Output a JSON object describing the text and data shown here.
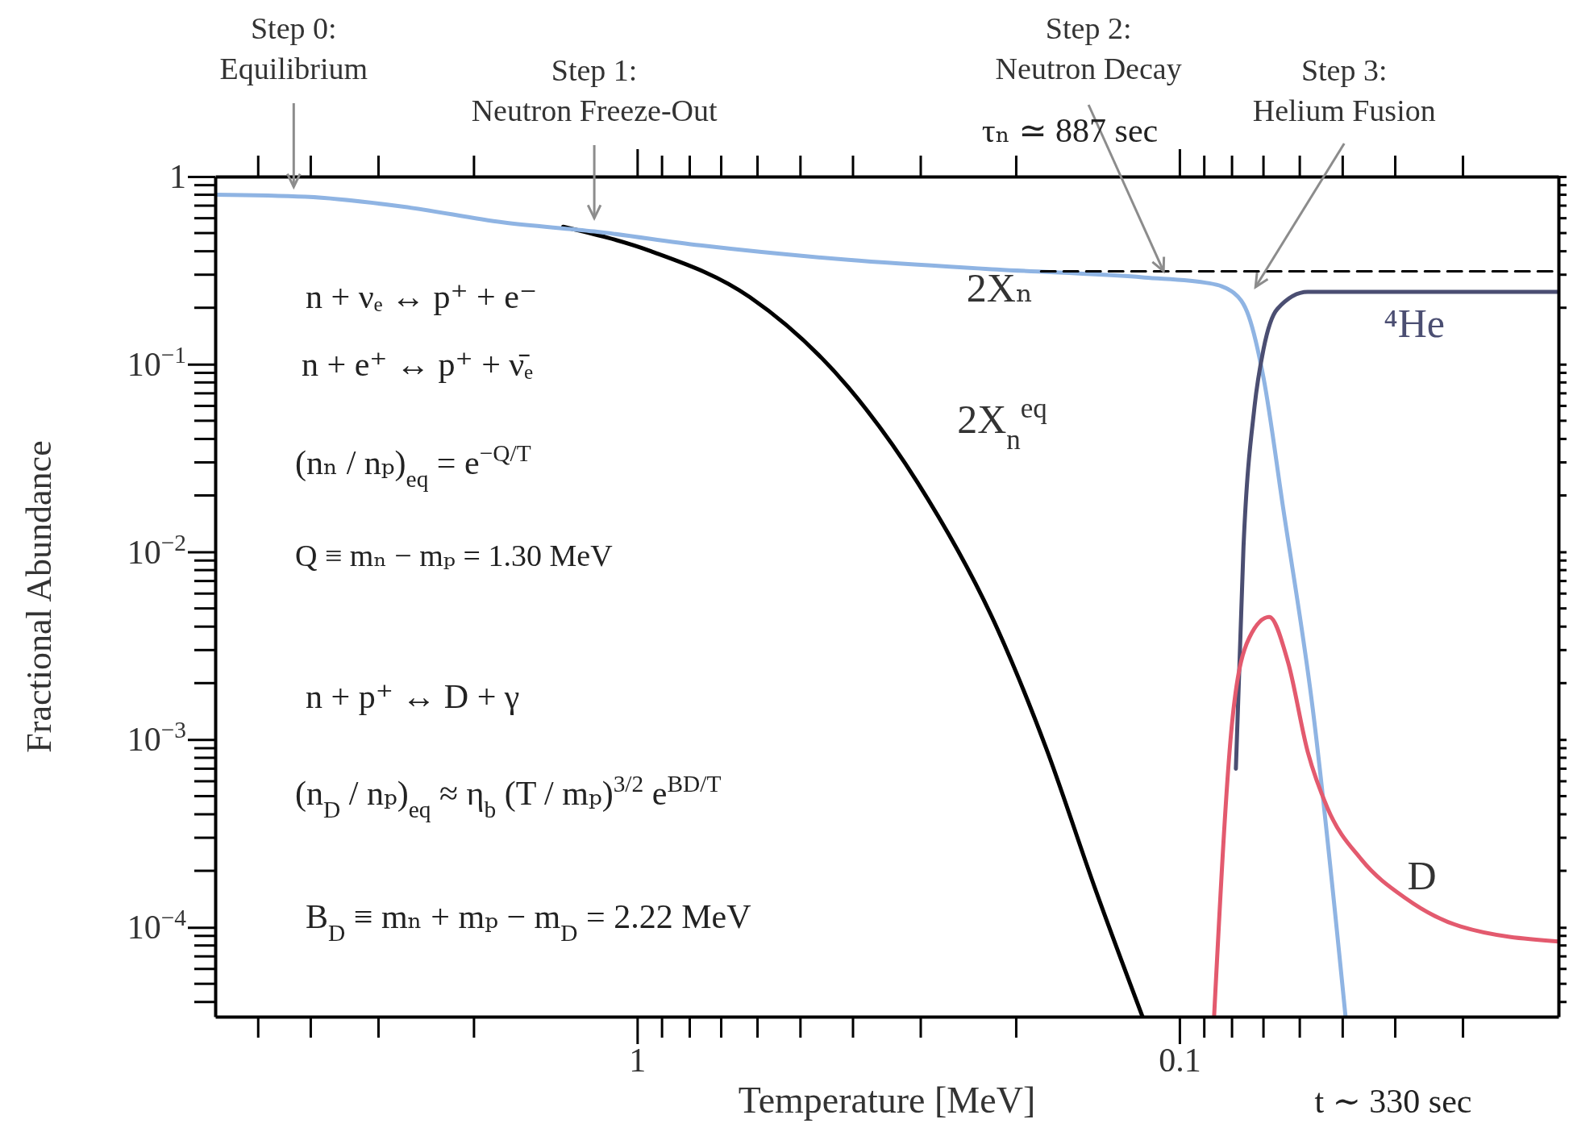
{
  "chart_data": {
    "type": "line",
    "xlabel": "Temperature [MeV]",
    "ylabel": "Fractional Abundance",
    "log": "xy",
    "grid": false,
    "legend": false,
    "marker": "none",
    "xlim": [
      6.0,
      0.02
    ],
    "ylim": [
      3.34e-05,
      1
    ],
    "xticks": [
      1,
      0.1
    ],
    "yticks": [
      1,
      {
        "value": 0.1,
        "label": "10$^{−1}$"
      },
      {
        "value": 0.01,
        "label": "10$^{−2}$"
      },
      {
        "value": 0.001,
        "label": "10$^{−3}$"
      },
      {
        "value": 0.0001,
        "label": "10$^{−4}$"
      }
    ],
    "series": [
      {
        "name": "2X$_{n}$$^{eq}$",
        "color": "#000000",
        "x": [
          1.37,
          0.943,
          0.62,
          0.408,
          0.304,
          0.217,
          0.176,
          0.143,
          0.117
        ],
        "values": [
          0.54,
          0.4,
          0.228,
          0.0753,
          0.0234,
          0.00393,
          0.000895,
          0.00016,
          3.34e-05
        ]
      },
      {
        "name": "2Xₙ",
        "color": "#8fb4e3",
        "x": [
          6.0,
          4.09,
          2.69,
          1.77,
          1.2,
          0.765,
          0.408,
          0.217,
          0.116,
          0.088,
          0.0794,
          0.0745,
          0.07,
          0.0644,
          0.0568,
          0.0494
        ],
        "values": [
          0.8,
          0.78,
          0.69,
          0.57,
          0.51,
          0.43,
          0.36,
          0.32,
          0.29,
          0.27,
          0.24,
          0.18,
          0.085,
          0.0172,
          0.00147,
          3.34e-05
        ]
      },
      {
        "color": "#000000",
        "line_style": "dashed",
        "x": [
          0.18,
          0.02
        ],
        "values": [
          0.313,
          0.313
        ]
      },
      {
        "name": "⁴He",
        "color": "#4b4e72",
        "x": [
          0.0787,
          0.0762,
          0.0727,
          0.07,
          0.066,
          0.058,
          0.02
        ],
        "values": [
          0.0007,
          0.0106,
          0.0596,
          0.12,
          0.197,
          0.243,
          0.243
        ]
      },
      {
        "name": "D",
        "color": "#e35a6e",
        "x": [
          0.0863,
          0.0798,
          0.0743,
          0.0683,
          0.0631,
          0.058,
          0.0533,
          0.0462,
          0.0383,
          0.0303,
          0.02
        ],
        "values": [
          3.4e-05,
          0.00131,
          0.0035,
          0.0045,
          0.0026,
          0.00086,
          0.00043,
          0.00023,
          0.000143,
          0.000101,
          8.4e-05
        ]
      }
    ],
    "annotations": [
      "Step 0:\nEquilibrium",
      "Step 1:\nNeutron Freeze-Out",
      {
        "text": "Step 2:\nNeutron Decay",
        "x": 0.107,
        "y": 0.313
      },
      "Step 3:\nHelium Fusion",
      "τₙ ≃ 887 sec",
      "t ∼ 330 sec",
      "n + νₑ  ↔  p⁺ + e⁻",
      "n + e⁺  ↔  p⁺ + ν̄ₑ",
      "(nₙ / nₚ)$_{eq}$ = e$^{−Q/T}$",
      "Q ≡ mₙ − mₚ = 1.30 MeV",
      "n + p⁺  ↔  D + γ",
      "(n$_{D}$ / nₚ)$_{eq}$ ≈ η$_{b}$ (T / mₚ)$^{3/2}$ e$^{BD/T}$",
      "B$_{D}$ ≡ mₙ + mₚ − m$_{D}$ = 2.22 MeV"
    ]
  }
}
